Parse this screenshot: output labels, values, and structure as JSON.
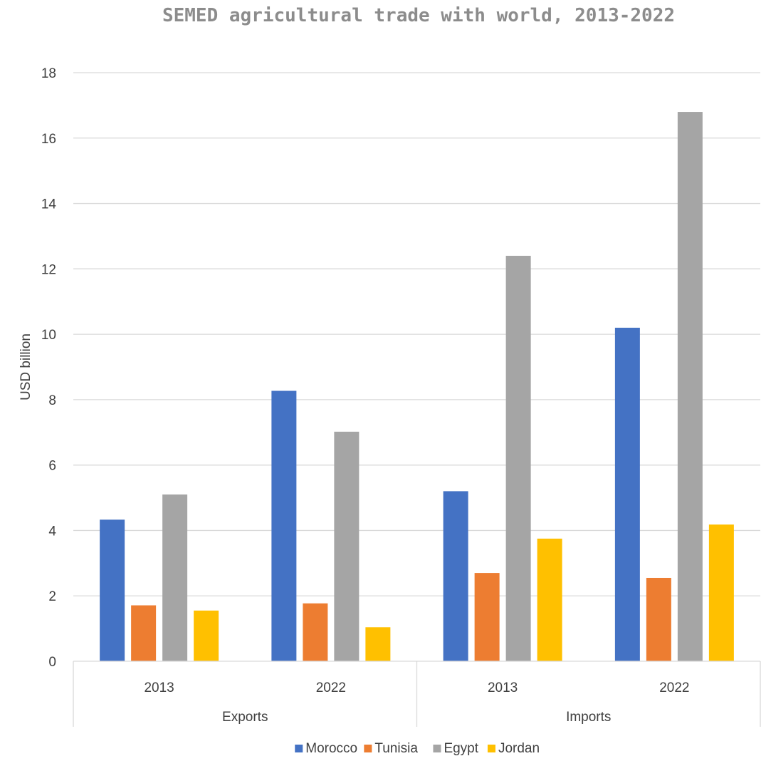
{
  "chart_data": {
    "type": "bar",
    "title": "SEMED agricultural trade with world, 2013-2022",
    "ylabel": "USD billion",
    "xlabel": "",
    "ylim": [
      0,
      18
    ],
    "y_ticks": [
      0,
      2,
      4,
      6,
      8,
      10,
      12,
      14,
      16,
      18
    ],
    "grid": true,
    "legend_position": "bottom",
    "groups": [
      {
        "label": "Exports",
        "categories": [
          "2013",
          "2022"
        ]
      },
      {
        "label": "Imports",
        "categories": [
          "2013",
          "2022"
        ]
      }
    ],
    "series": [
      {
        "name": "Morocco",
        "color": "#4472c4",
        "values": [
          4.33,
          8.27,
          5.2,
          10.2
        ]
      },
      {
        "name": "Tunisia",
        "color": "#ed7d31",
        "values": [
          1.71,
          1.77,
          2.7,
          2.55
        ]
      },
      {
        "name": "Egypt",
        "color": "#a5a5a5",
        "values": [
          5.1,
          7.02,
          12.4,
          16.8
        ]
      },
      {
        "name": "Jordan",
        "color": "#ffc000",
        "values": [
          1.55,
          1.04,
          3.75,
          4.18
        ]
      }
    ]
  }
}
